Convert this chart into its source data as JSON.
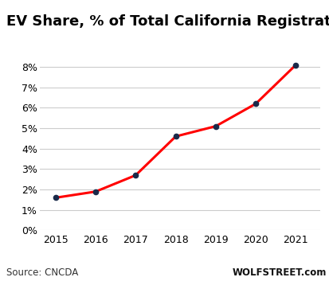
{
  "title": "EV Share, % of Total California Registrations",
  "x_values": [
    2015,
    2016,
    2017,
    2018,
    2019,
    2020,
    2021
  ],
  "y_values": [
    1.6,
    1.9,
    2.7,
    4.6,
    5.1,
    6.2,
    8.1
  ],
  "line_color": "#FF0000",
  "marker_color": "#1a2a4a",
  "marker_size": 4.5,
  "line_width": 2.2,
  "ylim": [
    0,
    8.8
  ],
  "yticks": [
    0,
    1,
    2,
    3,
    4,
    5,
    6,
    7,
    8
  ],
  "xticks": [
    2015,
    2016,
    2017,
    2018,
    2019,
    2020,
    2021
  ],
  "source_left": "Source: CNCDA",
  "source_right": "WOLFSTREET.com",
  "bg_color": "#ffffff",
  "grid_color": "#cccccc",
  "title_fontsize": 13,
  "tick_fontsize": 9,
  "source_fontsize": 8.5
}
